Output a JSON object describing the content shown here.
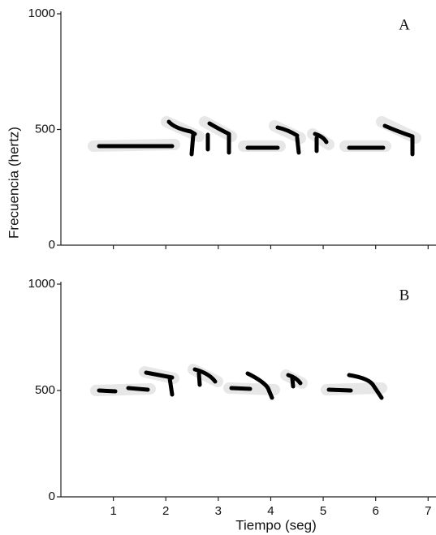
{
  "chart_data": [
    {
      "type": "spectrogram",
      "panel_label": "A",
      "y_label": "Frecuencia (hertz)",
      "xlim": [
        0,
        7.15
      ],
      "xticks": [
        1,
        2,
        3,
        4,
        5,
        6,
        7
      ],
      "ylim": [
        0,
        1000
      ],
      "yticks": [
        0,
        500,
        1000
      ]
    },
    {
      "type": "spectrogram",
      "panel_label": "B",
      "x_label": "Tiempo (seg)",
      "xlim": [
        0,
        7.15
      ],
      "xticks": [
        1,
        2,
        3,
        4,
        5,
        6,
        7
      ],
      "ylim": [
        0,
        1000
      ],
      "yticks": [
        0,
        500,
        1000
      ]
    }
  ]
}
